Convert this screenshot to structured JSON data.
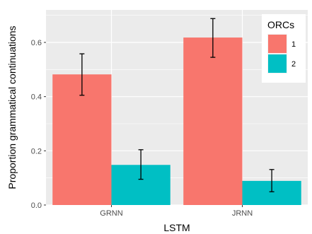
{
  "chart_data": {
    "type": "bar",
    "title": "",
    "xlabel": "LSTM",
    "ylabel": "Proportion grammatical continuations",
    "categories": [
      "GRNN",
      "JRNN"
    ],
    "ylim": [
      0,
      0.72
    ],
    "yticks": [
      0.0,
      0.2,
      0.4,
      0.6
    ],
    "ytick_labels": [
      "0.0",
      "0.2",
      "0.4",
      "0.6"
    ],
    "grid": true,
    "legend": {
      "title": "ORCs",
      "placement": "top-right"
    },
    "series": [
      {
        "name": "1",
        "color": "#F8766D",
        "values": [
          0.482,
          0.618
        ],
        "err_low": [
          0.405,
          0.545
        ],
        "err_high": [
          0.558,
          0.688
        ]
      },
      {
        "name": "2",
        "color": "#00BFC4",
        "values": [
          0.148,
          0.089
        ],
        "err_low": [
          0.095,
          0.049
        ],
        "err_high": [
          0.204,
          0.131
        ]
      }
    ]
  }
}
